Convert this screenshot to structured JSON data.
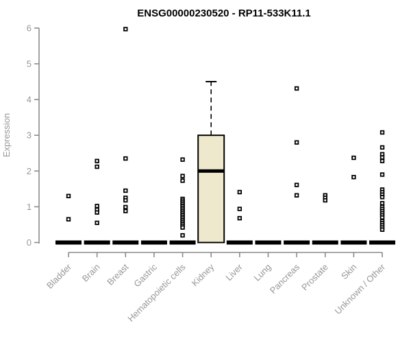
{
  "chart_data": {
    "type": "boxplot",
    "title": "ENSG00000230520 - RP11-533K11.1",
    "ylabel": "Expression",
    "xlabel": "",
    "ylim": [
      0,
      6
    ],
    "yticks": [
      0,
      1,
      2,
      3,
      4,
      5,
      6
    ],
    "grid": false,
    "legend": false,
    "categories": [
      "Bladder",
      "Brain",
      "Breast",
      "Gastric",
      "Hematopoietic cells",
      "Kidney",
      "Liver",
      "Lung",
      "Pancreas",
      "Prostate",
      "Skin",
      "Unknown / Other"
    ],
    "boxes": [
      {
        "category": "Bladder",
        "q1": 0,
        "median": 0,
        "q3": 0,
        "whisker_low": 0,
        "whisker_high": 0,
        "points": [
          1.3,
          0.65
        ]
      },
      {
        "category": "Brain",
        "q1": 0,
        "median": 0,
        "q3": 0,
        "whisker_low": 0,
        "whisker_high": 0,
        "points": [
          2.28,
          2.12,
          1.02,
          0.92,
          0.84,
          0.55
        ]
      },
      {
        "category": "Breast",
        "q1": 0,
        "median": 0,
        "q3": 0,
        "whisker_low": 0,
        "whisker_high": 0,
        "points": [
          5.97,
          2.35,
          1.45,
          1.25,
          1.18,
          0.99,
          0.88
        ]
      },
      {
        "category": "Gastric",
        "q1": 0,
        "median": 0,
        "q3": 0,
        "whisker_low": 0,
        "whisker_high": 0,
        "points": []
      },
      {
        "category": "Hematopoietic cells",
        "q1": 0,
        "median": 0,
        "q3": 0,
        "whisker_low": 0,
        "whisker_high": 0,
        "points": [
          2.32,
          1.86,
          1.73,
          1.22,
          1.17,
          1.12,
          1.07,
          1.02,
          0.97,
          0.92,
          0.87,
          0.82,
          0.77,
          0.72,
          0.67,
          0.62,
          0.57,
          0.52,
          0.47,
          0.42,
          0.2
        ]
      },
      {
        "category": "Kidney",
        "q1": 0,
        "median": 2,
        "q3": 3,
        "whisker_low": 0,
        "whisker_high": 4.5,
        "points": []
      },
      {
        "category": "Liver",
        "q1": 0,
        "median": 0,
        "q3": 0,
        "whisker_low": 0,
        "whisker_high": 0,
        "points": [
          1.41,
          0.94,
          0.68
        ]
      },
      {
        "category": "Lung",
        "q1": 0,
        "median": 0,
        "q3": 0,
        "whisker_low": 0,
        "whisker_high": 0,
        "points": []
      },
      {
        "category": "Pancreas",
        "q1": 0,
        "median": 0,
        "q3": 0,
        "whisker_low": 0,
        "whisker_high": 0,
        "points": [
          4.31,
          2.8,
          1.61,
          1.32
        ]
      },
      {
        "category": "Prostate",
        "q1": 0,
        "median": 0,
        "q3": 0,
        "whisker_low": 0,
        "whisker_high": 0,
        "points": [
          1.32,
          1.25,
          1.18
        ]
      },
      {
        "category": "Skin",
        "q1": 0,
        "median": 0,
        "q3": 0,
        "whisker_low": 0,
        "whisker_high": 0,
        "points": [
          2.37,
          1.83
        ]
      },
      {
        "category": "Unknown / Other",
        "q1": 0,
        "median": 0,
        "q3": 0,
        "whisker_low": 0,
        "whisker_high": 0,
        "points": [
          3.08,
          2.66,
          2.47,
          2.38,
          2.28,
          1.9,
          1.48,
          1.41,
          1.34,
          1.27,
          1.1,
          1.0,
          0.94,
          0.88,
          0.82,
          0.76,
          0.7,
          0.6,
          0.54,
          0.48,
          0.42,
          0.36
        ]
      }
    ],
    "colors": {
      "background": "#ffffff",
      "box_fill": "#EEE8CD",
      "box_border": "#000000",
      "median": "#000000",
      "whisker": "#000000",
      "point": "#000000",
      "axis": "#8a8a8a",
      "tick_label": "#979797",
      "title": "#000000"
    }
  }
}
